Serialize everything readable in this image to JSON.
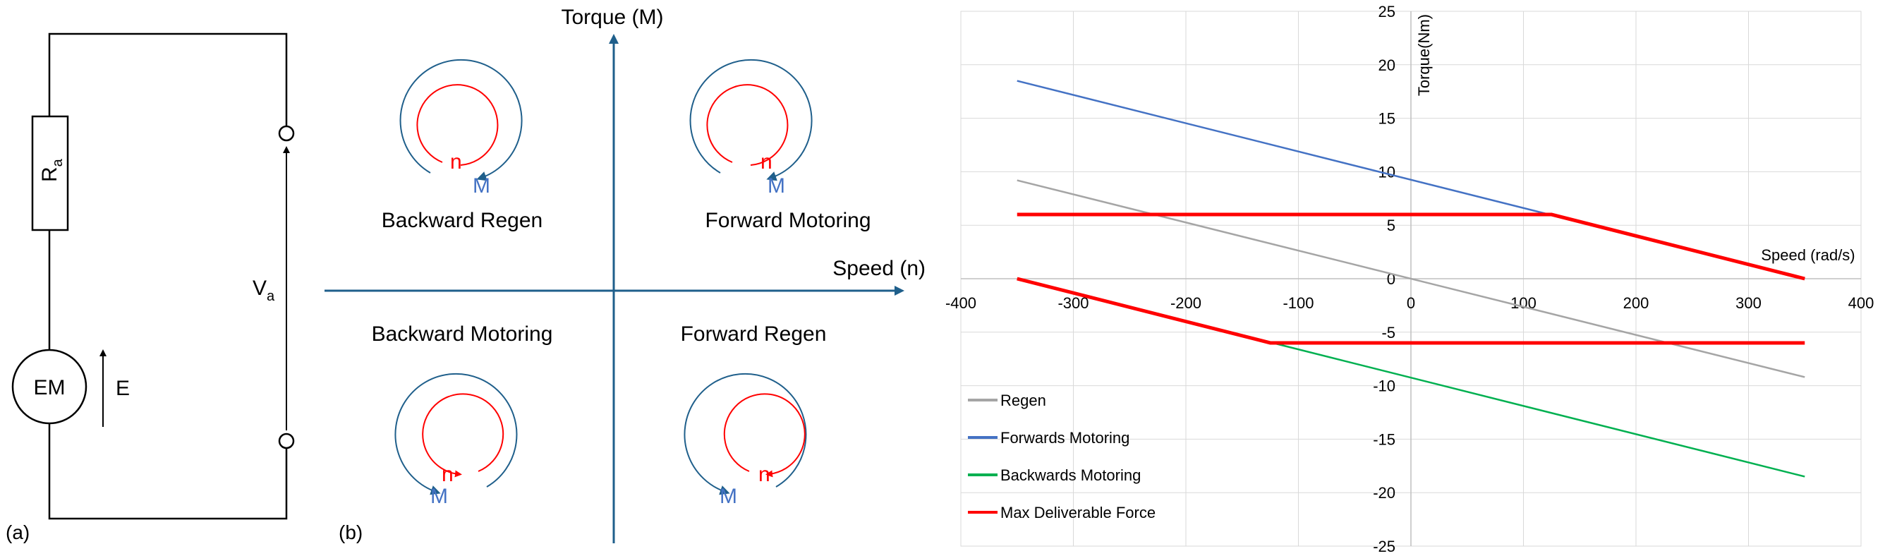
{
  "circuit": {
    "resistor_label": "R",
    "resistor_sub": "a",
    "voltage_label": "V",
    "voltage_sub": "a",
    "machine_label": "EM",
    "emf_label": "E",
    "panel_label": "(a)"
  },
  "quadrants": {
    "y_axis_label": "Torque (M)",
    "x_axis_label": "Speed (n)",
    "top_left": "Backward Regen",
    "top_right": "Forward Motoring",
    "bottom_left": "Backward Motoring",
    "bottom_right": "Forward Regen",
    "speed_symbol": "n",
    "torque_symbol": "M",
    "panel_label": "(b)",
    "colors": {
      "axis": "#1f5f8b",
      "speed": "#ff0000",
      "torque": "#4472c4"
    }
  },
  "chart_data": {
    "type": "line",
    "xlabel": "Speed (rad/s)",
    "ylabel": "Torque(Nm)",
    "xlim": [
      -400,
      400
    ],
    "ylim": [
      -25,
      25
    ],
    "x_ticks": [
      -400,
      -300,
      -200,
      -100,
      0,
      100,
      200,
      300,
      400
    ],
    "y_ticks": [
      25,
      20,
      15,
      10,
      5,
      0,
      -5,
      -10,
      -15,
      -20,
      -25
    ],
    "grid": true,
    "legend_position": "bottom-left",
    "series": [
      {
        "name": "Regen",
        "color": "#a5a5a5",
        "x": [
          -350,
          350
        ],
        "y": [
          9.2,
          -9.2
        ]
      },
      {
        "name": "Forwards Motoring",
        "color": "#4472c4",
        "x": [
          -350,
          350
        ],
        "y": [
          18.5,
          0
        ]
      },
      {
        "name": "Backwards Motoring",
        "color": "#00b050",
        "x": [
          -350,
          350
        ],
        "y": [
          0,
          -18.5
        ]
      },
      {
        "name": "Max Deliverable Force",
        "color": "#ff0000",
        "x": [
          -350,
          125,
          350
        ],
        "y": [
          6,
          6,
          0
        ],
        "x2": [
          -350,
          -125,
          350
        ],
        "y2": [
          0,
          -6,
          -6
        ]
      }
    ]
  }
}
